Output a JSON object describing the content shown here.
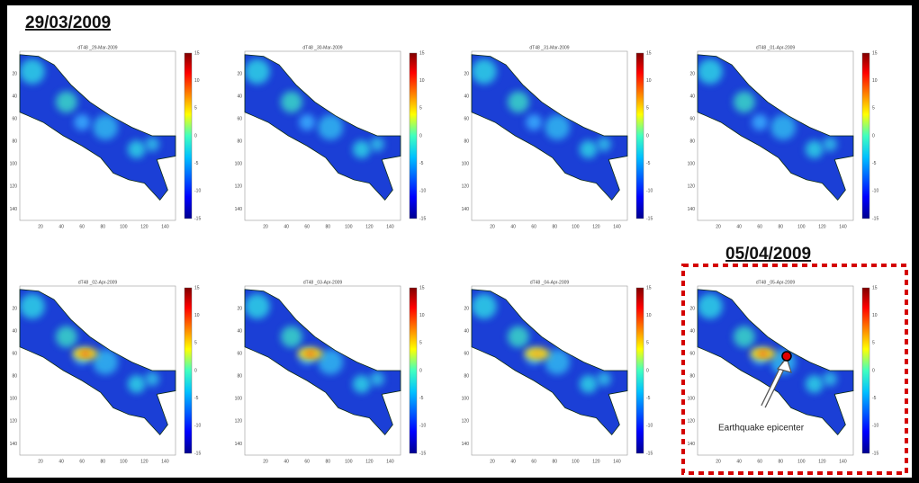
{
  "header": {
    "date": "29/03/2009"
  },
  "highlight": {
    "date": "05/04/2009",
    "annotation": "Earthquake epicenter"
  },
  "panels": [
    {
      "title": "dT48 _29-Mar-2009"
    },
    {
      "title": "dT48 _30-Mar-2009"
    },
    {
      "title": "dT48 _31-Mar-2009"
    },
    {
      "title": "dT48 _01-Apr-2009"
    },
    {
      "title": "dT48 _02-Apr-2009"
    },
    {
      "title": "dT48 _03-Apr-2009"
    },
    {
      "title": "dT48 _04-Apr-2009"
    },
    {
      "title": "dT48 _05-Apr-2009"
    }
  ],
  "colorbar_ticks": [
    15,
    10,
    5,
    0,
    -5,
    -10,
    -15
  ],
  "x_ticks": [
    20,
    40,
    60,
    80,
    100,
    120,
    140
  ],
  "y_ticks": [
    20,
    40,
    60,
    80,
    100,
    120,
    140
  ]
}
